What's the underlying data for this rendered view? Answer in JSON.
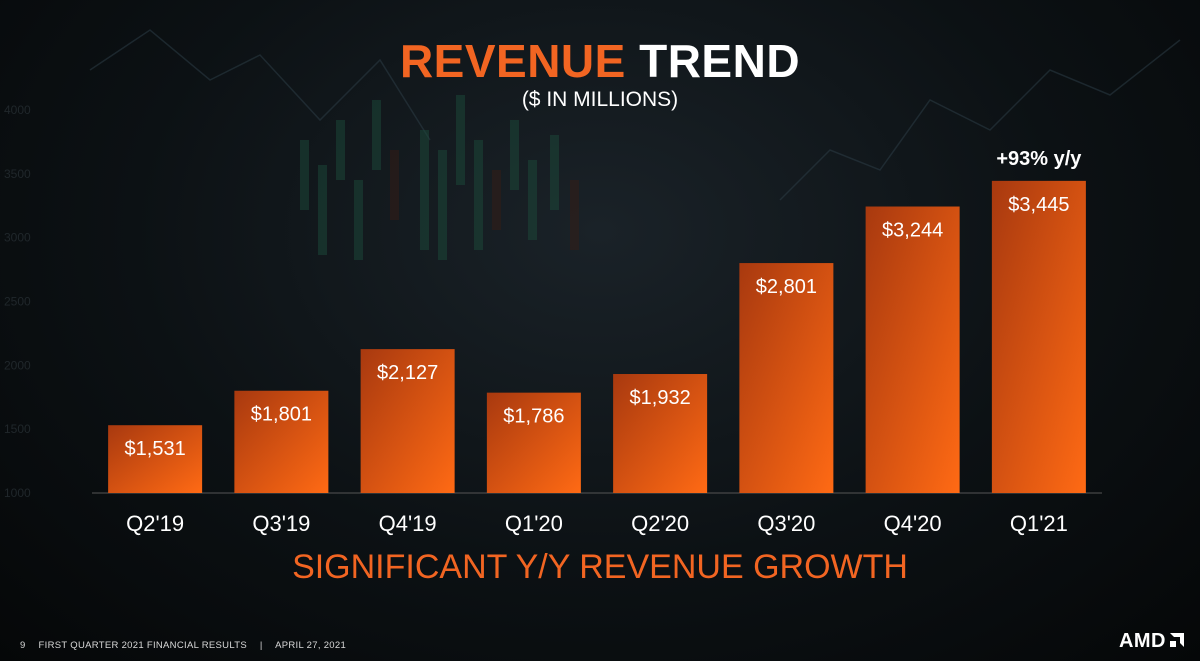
{
  "slide": {
    "title_highlight": "REVENUE",
    "title_rest": "TREND",
    "subtitle": "($ IN MILLIONS)",
    "tagline": "SIGNIFICANT Y/Y REVENUE GROWTH",
    "page_number": "9",
    "footer_text": "FIRST QUARTER 2021 FINANCIAL RESULTS",
    "footer_separator": "|",
    "footer_date": "APRIL 27, 2021",
    "logo_text": "AMD",
    "colors": {
      "accent": "#f26522",
      "background": "#0c1114",
      "bar_dark": "#a8390f",
      "bar_light": "#ff6a14"
    }
  },
  "chart_data": {
    "type": "bar",
    "title": "REVENUE TREND",
    "subtitle": "($ IN MILLIONS)",
    "xlabel": "",
    "ylabel": "",
    "categories": [
      "Q2'19",
      "Q3'19",
      "Q4'19",
      "Q1'20",
      "Q2'20",
      "Q3'20",
      "Q4'20",
      "Q1'21"
    ],
    "values": [
      1531,
      1801,
      2127,
      1786,
      1932,
      2801,
      3244,
      3445
    ],
    "labels": [
      "$1,531",
      "$1,801",
      "$2,127",
      "$1,786",
      "$1,932",
      "$2,801",
      "$3,244",
      "$3,445"
    ],
    "yticks": [
      1000,
      1500,
      2000,
      2500,
      3000,
      3500,
      4000
    ],
    "ylim": [
      1000,
      4000
    ],
    "annotation": {
      "category": "Q1'21",
      "text": "+93% y/y"
    },
    "grid": false
  }
}
